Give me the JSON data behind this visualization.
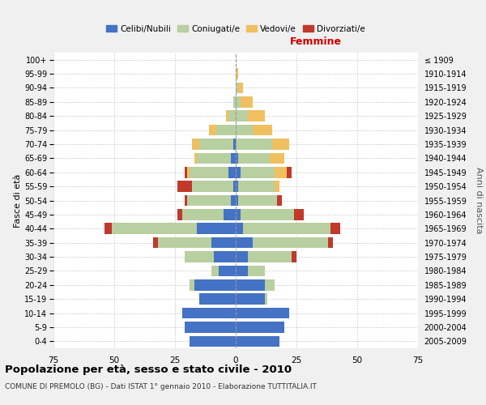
{
  "age_groups": [
    "0-4",
    "5-9",
    "10-14",
    "15-19",
    "20-24",
    "25-29",
    "30-34",
    "35-39",
    "40-44",
    "45-49",
    "50-54",
    "55-59",
    "60-64",
    "65-69",
    "70-74",
    "75-79",
    "80-84",
    "85-89",
    "90-94",
    "95-99",
    "100+"
  ],
  "birth_years": [
    "2005-2009",
    "2000-2004",
    "1995-1999",
    "1990-1994",
    "1985-1989",
    "1980-1984",
    "1975-1979",
    "1970-1974",
    "1965-1969",
    "1960-1964",
    "1955-1959",
    "1950-1954",
    "1945-1949",
    "1940-1944",
    "1935-1939",
    "1930-1934",
    "1925-1929",
    "1920-1924",
    "1915-1919",
    "1910-1914",
    "≤ 1909"
  ],
  "male": {
    "celibi": [
      19,
      21,
      22,
      15,
      17,
      7,
      9,
      10,
      16,
      5,
      2,
      1,
      3,
      2,
      1,
      0,
      0,
      0,
      0,
      0,
      0
    ],
    "coniugati": [
      0,
      0,
      0,
      0,
      2,
      3,
      12,
      22,
      35,
      17,
      18,
      17,
      16,
      14,
      14,
      8,
      3,
      1,
      0,
      0,
      0
    ],
    "vedovi": [
      0,
      0,
      0,
      0,
      0,
      0,
      0,
      0,
      0,
      0,
      0,
      0,
      1,
      1,
      3,
      3,
      1,
      0,
      0,
      0,
      0
    ],
    "divorziati": [
      0,
      0,
      0,
      0,
      0,
      0,
      0,
      2,
      3,
      2,
      1,
      6,
      1,
      0,
      0,
      0,
      0,
      0,
      0,
      0,
      0
    ]
  },
  "female": {
    "nubili": [
      18,
      20,
      22,
      12,
      12,
      5,
      5,
      7,
      3,
      2,
      1,
      1,
      2,
      1,
      0,
      0,
      0,
      0,
      0,
      0,
      0
    ],
    "coniugate": [
      0,
      0,
      0,
      1,
      4,
      7,
      18,
      31,
      36,
      22,
      16,
      15,
      14,
      13,
      15,
      7,
      5,
      2,
      1,
      0,
      0
    ],
    "vedove": [
      0,
      0,
      0,
      0,
      0,
      0,
      0,
      0,
      0,
      0,
      0,
      2,
      5,
      6,
      7,
      8,
      7,
      5,
      2,
      1,
      0
    ],
    "divorziate": [
      0,
      0,
      0,
      0,
      0,
      0,
      2,
      2,
      4,
      4,
      2,
      0,
      2,
      0,
      0,
      0,
      0,
      0,
      0,
      0,
      0
    ]
  },
  "colors": {
    "celibi": "#4472c4",
    "coniugati": "#b8cfa0",
    "vedovi": "#f0c060",
    "divorziati": "#c0392b"
  },
  "xlim": 75,
  "title": "Popolazione per età, sesso e stato civile - 2010",
  "subtitle": "COMUNE DI PREMOLO (BG) - Dati ISTAT 1° gennaio 2010 - Elaborazione TUTTITALIA.IT",
  "ylabel_left": "Fasce di età",
  "ylabel_right": "Anni di nascita",
  "xlabel_right": "Femmine",
  "legend_labels": [
    "Celibi/Nubili",
    "Coniugati/e",
    "Vedovi/e",
    "Divorziati/e"
  ],
  "bg_color": "#f0f0f0",
  "plot_bg": "#ffffff"
}
